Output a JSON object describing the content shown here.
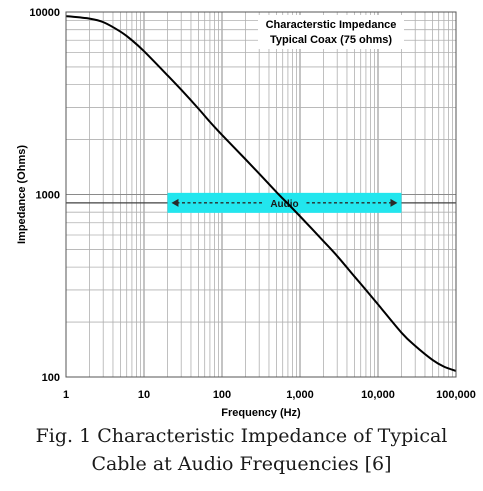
{
  "chart_data": {
    "type": "line",
    "title": [
      "Characterstic Impedance",
      "Typical Coax (75 ohms)"
    ],
    "xlabel": "Frequency  (Hz)",
    "ylabel": "Impedance  (Ohms)",
    "xscale": "log",
    "yscale": "log",
    "xlim": [
      1,
      100000
    ],
    "ylim": [
      100,
      10000
    ],
    "grid": true,
    "x_ticks": [
      1,
      10,
      100,
      1000,
      10000,
      100000
    ],
    "x_tick_labels": [
      "1",
      "10",
      "100",
      "1,000",
      "10,000",
      "100,000"
    ],
    "y_ticks": [
      100,
      1000,
      10000
    ],
    "y_tick_labels": [
      "100",
      "1000",
      "10000"
    ],
    "series": [
      {
        "x": [
          1,
          2,
          3,
          5,
          7,
          10,
          20,
          30,
          50,
          70,
          100,
          200,
          300,
          500,
          700,
          1000,
          2000,
          3000,
          5000,
          7000,
          10000,
          20000,
          30000,
          50000,
          70000,
          100000
        ],
        "y": [
          9500,
          9200,
          8800,
          7800,
          7000,
          6100,
          4500,
          3750,
          2950,
          2500,
          2120,
          1560,
          1300,
          1030,
          890,
          760,
          555,
          460,
          355,
          300,
          250,
          175,
          148,
          124,
          114,
          108
        ]
      }
    ],
    "annotations": [
      {
        "text": "Audio",
        "x_range": [
          20,
          20000
        ],
        "y": 900,
        "color": "#22e6ee"
      }
    ],
    "colors": {
      "line": "#000000",
      "grid": "#b0b0b0",
      "band": "#22e6ee",
      "band_arrow": "#2a2a2a",
      "reference_line": "#404040"
    }
  },
  "caption": {
    "line1": "Fig. 1 Characteristic Impedance of Typical",
    "line2": "Cable at Audio Frequencies [6]"
  }
}
